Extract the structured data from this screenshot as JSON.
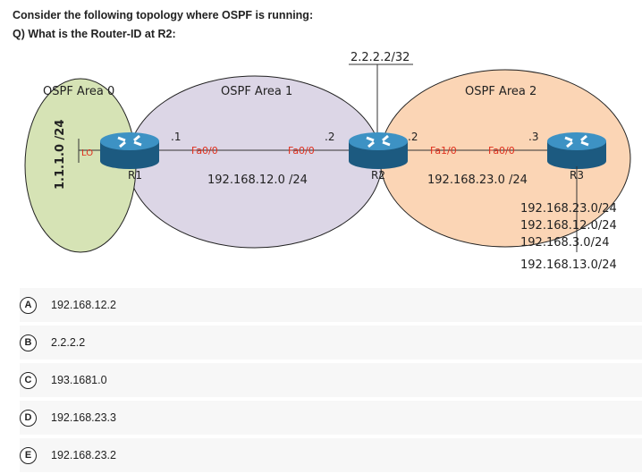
{
  "question": {
    "line1": "Consider the following topology where OSPF is running:",
    "line2": "Q) What is the Router-ID at R2:"
  },
  "diagram": {
    "areas": {
      "area0": "OSPF Area 0",
      "area1": "OSPF Area 1",
      "area2": "OSPF Area 2"
    },
    "loopback": {
      "network": "1.1.1.0 /24",
      "interface": "LO"
    },
    "routers": {
      "r1": {
        "label": "R1",
        "fa0_label": "Fa0/0",
        "host": ".1"
      },
      "r2": {
        "label": "R2",
        "fa0_label": "Fa0/0",
        "fa1_label": "Fa1/0",
        "host_left": ".2",
        "host_right": ".2",
        "loopback": "2.2.2.2/32"
      },
      "r3": {
        "label": "R3",
        "fa0_label": "Fa0/0",
        "host": ".3"
      }
    },
    "links": {
      "r1_r2": "192.168.12.0 /24",
      "r2_r3": "192.168.23.0 /24"
    },
    "r3_networks": [
      "192.168.23.0/24",
      "192.168.12.0/24",
      "192.168.3.0/24",
      "192.168.13.0/24"
    ],
    "colors": {
      "area0": "#d6e3b5",
      "area1": "#dcd6e6",
      "area2": "#fbd5b5",
      "router": "#2e7fb0",
      "interface_label": "#e0301e"
    }
  },
  "options": [
    {
      "letter": "A",
      "text": "192.168.12.2"
    },
    {
      "letter": "B",
      "text": "2.2.2.2"
    },
    {
      "letter": "C",
      "text": "193.1681.0"
    },
    {
      "letter": "D",
      "text": "192.168.23.3"
    },
    {
      "letter": "E",
      "text": "192.168.23.2"
    }
  ]
}
